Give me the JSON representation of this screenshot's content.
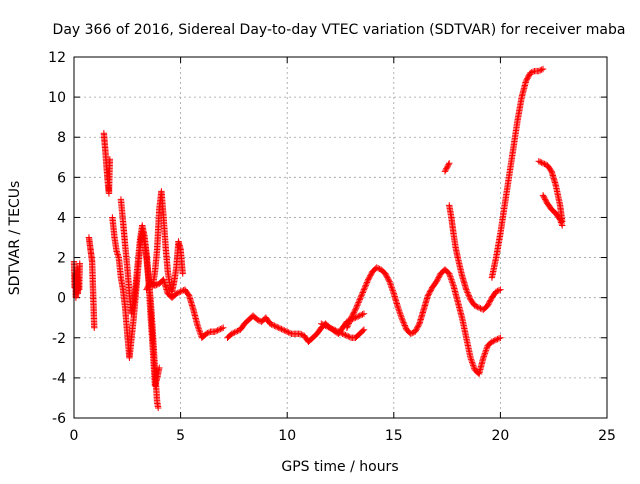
{
  "chart_data": {
    "type": "scatter",
    "title": "Day 366 of 2016, Sidereal Day-to-day VTEC variation (SDTVAR) for receiver maba",
    "xlabel": "GPS time / hours",
    "ylabel": "SDTVAR / TECUs",
    "xlim": [
      0,
      25
    ],
    "ylim": [
      -6,
      12
    ],
    "xticks": [
      0,
      5,
      10,
      15,
      20,
      25
    ],
    "yticks": [
      -6,
      -4,
      -2,
      0,
      2,
      4,
      6,
      8,
      10,
      12
    ],
    "grid": true,
    "marker": "+",
    "color": "#ff0000",
    "series": [
      {
        "name": "SDTVAR maba",
        "segments": [
          [
            [
              0.0,
              1.8
            ],
            [
              0.03,
              0.5
            ],
            [
              0.06,
              1.2
            ],
            [
              0.09,
              0.0
            ],
            [
              0.12,
              0.8
            ],
            [
              0.15,
              1.5
            ],
            [
              0.18,
              0.2
            ],
            [
              0.21,
              1.0
            ],
            [
              0.24,
              0.4
            ],
            [
              0.27,
              1.7
            ]
          ],
          [
            [
              0.7,
              3.0
            ],
            [
              0.75,
              2.6
            ],
            [
              0.8,
              2.2
            ],
            [
              0.85,
              1.8
            ],
            [
              0.88,
              0.8
            ],
            [
              0.92,
              -0.5
            ],
            [
              0.95,
              -1.5
            ]
          ],
          [
            [
              1.4,
              8.2
            ],
            [
              1.44,
              7.7
            ],
            [
              1.48,
              7.2
            ],
            [
              1.52,
              6.6
            ],
            [
              1.56,
              6.1
            ],
            [
              1.6,
              5.6
            ],
            [
              1.64,
              5.2
            ],
            [
              1.68,
              6.9
            ]
          ],
          [
            [
              1.8,
              4.0
            ],
            [
              1.9,
              3.0
            ],
            [
              2.0,
              2.3
            ],
            [
              2.1,
              2.0
            ],
            [
              2.2,
              1.0
            ],
            [
              2.3,
              0.4
            ],
            [
              2.4,
              -0.5
            ],
            [
              2.5,
              -1.8
            ],
            [
              2.6,
              -3.0
            ],
            [
              2.7,
              -2.0
            ],
            [
              2.8,
              -1.0
            ],
            [
              2.9,
              0.2
            ],
            [
              3.0,
              1.4
            ],
            [
              3.1,
              2.5
            ],
            [
              3.2,
              3.3
            ],
            [
              3.3,
              2.8
            ],
            [
              3.4,
              2.0
            ],
            [
              3.5,
              0.8
            ],
            [
              3.6,
              -1.0
            ],
            [
              3.7,
              -2.6
            ],
            [
              3.8,
              -4.4
            ],
            [
              3.9,
              -4.0
            ],
            [
              4.0,
              -3.5
            ]
          ],
          [
            [
              2.2,
              4.9
            ],
            [
              2.3,
              3.8
            ],
            [
              2.4,
              2.6
            ],
            [
              2.5,
              1.5
            ],
            [
              2.6,
              0.2
            ],
            [
              2.7,
              -0.8
            ],
            [
              2.8,
              -0.2
            ],
            [
              2.9,
              0.7
            ],
            [
              3.0,
              1.8
            ],
            [
              3.1,
              2.9
            ],
            [
              3.2,
              3.6
            ],
            [
              3.3,
              3.1
            ],
            [
              3.4,
              2.2
            ],
            [
              3.5,
              1.0
            ],
            [
              3.6,
              -0.2
            ],
            [
              3.7,
              -1.8
            ],
            [
              3.8,
              -3.6
            ],
            [
              3.9,
              -5.2
            ],
            [
              3.95,
              -5.5
            ]
          ],
          [
            [
              3.7,
              0.6
            ],
            [
              3.8,
              1.3
            ],
            [
              3.9,
              2.4
            ],
            [
              4.0,
              4.4
            ],
            [
              4.1,
              5.3
            ],
            [
              4.2,
              4.0
            ],
            [
              4.3,
              2.5
            ],
            [
              4.4,
              1.3
            ],
            [
              4.5,
              0.6
            ],
            [
              4.6,
              0.3
            ],
            [
              4.7,
              0.8
            ],
            [
              4.8,
              1.5
            ],
            [
              4.9,
              2.8
            ],
            [
              5.0,
              2.4
            ],
            [
              5.1,
              1.2
            ]
          ],
          [
            [
              3.4,
              0.4
            ],
            [
              3.6,
              0.8
            ],
            [
              3.8,
              0.6
            ],
            [
              4.0,
              0.7
            ],
            [
              4.2,
              0.9
            ],
            [
              4.4,
              0.2
            ],
            [
              4.6,
              0.0
            ],
            [
              4.8,
              0.2
            ],
            [
              5.0,
              0.3
            ],
            [
              5.2,
              0.4
            ],
            [
              5.4,
              0.1
            ],
            [
              5.6,
              -0.6
            ],
            [
              5.8,
              -1.4
            ],
            [
              6.0,
              -2.0
            ],
            [
              6.2,
              -1.8
            ],
            [
              6.4,
              -1.7
            ],
            [
              6.6,
              -1.7
            ],
            [
              6.8,
              -1.6
            ],
            [
              7.0,
              -1.5
            ]
          ],
          [
            [
              7.2,
              -2.0
            ],
            [
              7.4,
              -1.8
            ],
            [
              7.6,
              -1.7
            ],
            [
              7.8,
              -1.6
            ],
            [
              8.0,
              -1.3
            ],
            [
              8.2,
              -1.1
            ],
            [
              8.4,
              -0.9
            ],
            [
              8.6,
              -1.1
            ],
            [
              8.8,
              -1.2
            ],
            [
              9.0,
              -1.0
            ],
            [
              9.2,
              -1.3
            ],
            [
              9.4,
              -1.4
            ],
            [
              9.6,
              -1.5
            ],
            [
              9.8,
              -1.6
            ],
            [
              10.0,
              -1.7
            ],
            [
              10.2,
              -1.8
            ],
            [
              10.4,
              -1.8
            ],
            [
              10.6,
              -1.8
            ],
            [
              10.8,
              -1.9
            ],
            [
              11.0,
              -2.2
            ],
            [
              11.2,
              -2.0
            ],
            [
              11.4,
              -1.8
            ],
            [
              11.6,
              -1.5
            ],
            [
              11.8,
              -1.3
            ],
            [
              12.0,
              -1.5
            ],
            [
              12.2,
              -1.6
            ],
            [
              12.4,
              -1.7
            ],
            [
              12.6,
              -1.8
            ],
            [
              12.8,
              -1.9
            ],
            [
              13.0,
              -2.0
            ],
            [
              13.2,
              -2.0
            ],
            [
              13.4,
              -1.8
            ],
            [
              13.6,
              -1.6
            ]
          ],
          [
            [
              11.6,
              -1.3
            ],
            [
              12.0,
              -1.5
            ],
            [
              12.4,
              -1.8
            ],
            [
              12.8,
              -1.2
            ],
            [
              13.2,
              -1.0
            ],
            [
              13.6,
              -0.8
            ]
          ],
          [
            [
              12.8,
              -1.5
            ],
            [
              13.0,
              -1.0
            ],
            [
              13.2,
              -0.6
            ],
            [
              13.4,
              -0.1
            ],
            [
              13.6,
              0.4
            ],
            [
              13.8,
              0.9
            ],
            [
              14.0,
              1.3
            ],
            [
              14.2,
              1.5
            ],
            [
              14.4,
              1.4
            ],
            [
              14.6,
              1.2
            ],
            [
              14.8,
              0.8
            ],
            [
              15.0,
              0.2
            ],
            [
              15.2,
              -0.5
            ],
            [
              15.4,
              -1.1
            ],
            [
              15.6,
              -1.6
            ],
            [
              15.8,
              -1.8
            ],
            [
              16.0,
              -1.7
            ],
            [
              16.2,
              -1.3
            ],
            [
              16.4,
              -0.6
            ],
            [
              16.6,
              0.1
            ],
            [
              16.8,
              0.5
            ],
            [
              17.0,
              0.8
            ],
            [
              17.2,
              1.2
            ],
            [
              17.4,
              1.4
            ],
            [
              17.6,
              1.2
            ],
            [
              17.8,
              0.6
            ],
            [
              18.0,
              -0.2
            ],
            [
              18.2,
              -1.0
            ],
            [
              18.4,
              -2.0
            ],
            [
              18.6,
              -3.0
            ],
            [
              18.8,
              -3.6
            ],
            [
              19.0,
              -3.8
            ],
            [
              19.2,
              -3.0
            ],
            [
              19.4,
              -2.4
            ],
            [
              19.6,
              -2.2
            ],
            [
              19.8,
              -2.1
            ],
            [
              20.0,
              -2.0
            ]
          ],
          [
            [
              17.4,
              6.3
            ],
            [
              17.5,
              6.5
            ],
            [
              17.6,
              6.7
            ]
          ],
          [
            [
              17.6,
              4.6
            ],
            [
              17.7,
              4.0
            ],
            [
              17.8,
              3.2
            ],
            [
              17.9,
              2.5
            ],
            [
              18.0,
              2.0
            ],
            [
              18.2,
              1.1
            ],
            [
              18.4,
              0.4
            ],
            [
              18.6,
              -0.1
            ],
            [
              18.8,
              -0.4
            ],
            [
              19.0,
              -0.5
            ],
            [
              19.2,
              -0.6
            ],
            [
              19.4,
              -0.4
            ],
            [
              19.6,
              0.0
            ],
            [
              19.8,
              0.3
            ],
            [
              20.0,
              0.4
            ]
          ],
          [
            [
              19.6,
              1.0
            ],
            [
              19.8,
              2.0
            ],
            [
              20.0,
              3.2
            ],
            [
              20.2,
              4.6
            ],
            [
              20.4,
              6.0
            ],
            [
              20.6,
              7.4
            ],
            [
              20.8,
              8.8
            ],
            [
              21.0,
              10.0
            ],
            [
              21.2,
              10.8
            ],
            [
              21.4,
              11.2
            ],
            [
              21.6,
              11.3
            ],
            [
              21.8,
              11.3
            ],
            [
              22.0,
              11.4
            ]
          ],
          [
            [
              21.8,
              6.8
            ],
            [
              22.0,
              6.7
            ],
            [
              22.2,
              6.6
            ],
            [
              22.4,
              6.3
            ],
            [
              22.6,
              5.6
            ],
            [
              22.8,
              4.6
            ],
            [
              22.9,
              3.8
            ]
          ],
          [
            [
              22.0,
              5.1
            ],
            [
              22.2,
              4.7
            ],
            [
              22.4,
              4.4
            ],
            [
              22.6,
              4.2
            ],
            [
              22.8,
              3.9
            ],
            [
              22.9,
              3.6
            ]
          ]
        ]
      }
    ]
  }
}
